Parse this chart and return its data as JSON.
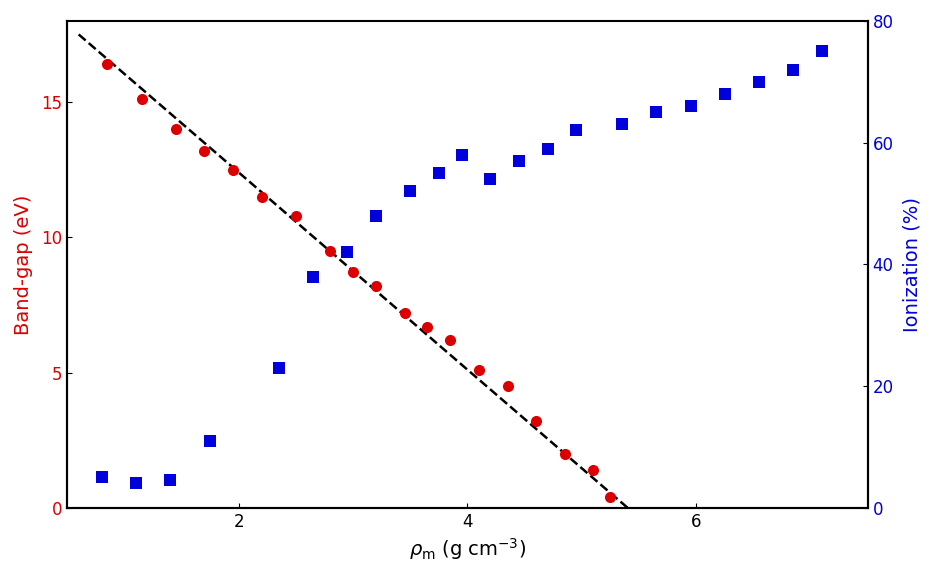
{
  "red_x": [
    0.85,
    1.15,
    1.45,
    1.7,
    1.95,
    2.2,
    2.5,
    2.8,
    3.0,
    3.2,
    3.45,
    3.65,
    3.85,
    4.1,
    4.35,
    4.6,
    4.85,
    5.1,
    5.25
  ],
  "red_y": [
    16.4,
    15.1,
    14.0,
    13.2,
    12.5,
    11.5,
    10.8,
    9.5,
    8.7,
    8.2,
    7.2,
    6.7,
    6.2,
    5.1,
    4.5,
    3.2,
    2.0,
    1.4,
    0.4
  ],
  "blue_x": [
    0.8,
    1.1,
    1.4,
    1.75,
    2.35,
    2.65,
    2.95,
    3.2,
    3.5,
    3.75,
    3.95,
    4.2,
    4.45,
    4.7,
    4.95,
    5.35,
    5.65,
    5.95,
    6.25,
    6.55,
    6.85,
    7.1
  ],
  "blue_y": [
    5,
    4,
    4.5,
    11,
    23,
    38,
    42,
    48,
    52,
    55,
    58,
    54,
    57,
    59,
    62,
    63,
    65,
    66,
    68,
    70,
    72,
    75
  ],
  "fit_x": [
    0.6,
    5.4
  ],
  "fit_y": [
    17.5,
    0.0
  ],
  "xlim": [
    0.5,
    7.5
  ],
  "ylim_left": [
    0,
    18
  ],
  "ylim_right": [
    0,
    80
  ],
  "yticks_left": [
    0,
    5,
    10,
    15
  ],
  "yticks_right": [
    0,
    20,
    40,
    60,
    80
  ],
  "xticks": [
    2,
    4,
    6
  ],
  "xlabel": "$\\rho_\\mathrm{m}$ (g cm$^{-3}$)",
  "ylabel_left": "Band-gap (eV)",
  "ylabel_right": "Ionization (%)",
  "red_color": "#dd0000",
  "blue_color": "#0000dd",
  "fit_color": "black",
  "background_color": "#ffffff",
  "marker_size_red": 8,
  "marker_size_blue": 8,
  "font_size_label": 14,
  "font_size_tick": 12,
  "linewidth_fit": 1.8,
  "linewidth_spine": 1.5
}
